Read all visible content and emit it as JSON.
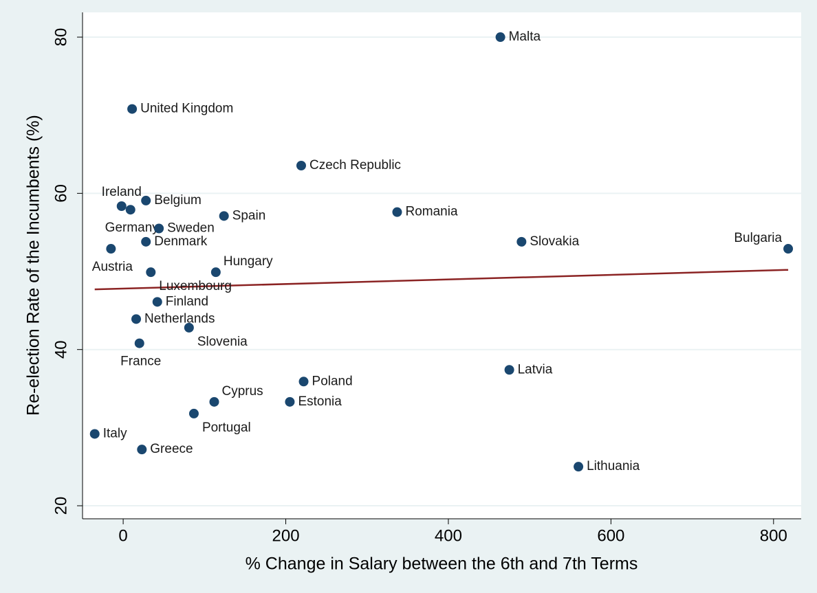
{
  "chart_data": {
    "type": "scatter",
    "xlabel": "% Change in Salary between the 6th and 7th Terms",
    "ylabel": "Re-election Rate of the Incumbents (%)",
    "color": "#1a476f",
    "labels": [
      "Malta",
      "United Kingdom",
      "Czech Republic",
      "Ireland",
      "Germany",
      "Belgium",
      "Sweden",
      "Spain",
      "Romania",
      "Denmark",
      "Austria",
      "Slovakia",
      "Bulgaria",
      "Luxembourg",
      "Hungary",
      "Finland",
      "Netherlands",
      "Slovenia",
      "France",
      "Latvia",
      "Poland",
      "Cyprus",
      "Estonia",
      "Portugal",
      "Italy",
      "Greece",
      "Lithuania"
    ],
    "x": [
      464,
      11,
      219,
      -2,
      9,
      28,
      44,
      124,
      337,
      28,
      -15,
      490,
      818,
      34,
      114,
      42,
      16,
      81,
      20,
      475,
      222,
      112,
      205,
      87,
      -35,
      23,
      560
    ],
    "y": [
      80,
      70.8,
      63.55,
      58.36,
      57.9,
      59.07,
      55.5,
      57.1,
      57.6,
      53.8,
      52.9,
      53.8,
      52.9,
      49.9,
      49.9,
      46.1,
      43.9,
      42.8,
      40.8,
      37.4,
      35.9,
      33.3,
      33.3,
      31.8,
      29.2,
      27.2,
      25.0
    ],
    "fit": {
      "x": [
        -35,
        818
      ],
      "y": [
        47.7,
        50.2
      ],
      "color": "#8b2323"
    },
    "xlim": [
      -50,
      834
    ],
    "ylim": [
      18.33,
      83.17
    ],
    "xticks": [
      0,
      200,
      400,
      600,
      800
    ],
    "yticks": [
      20,
      40,
      60,
      80
    ],
    "grid": true
  }
}
